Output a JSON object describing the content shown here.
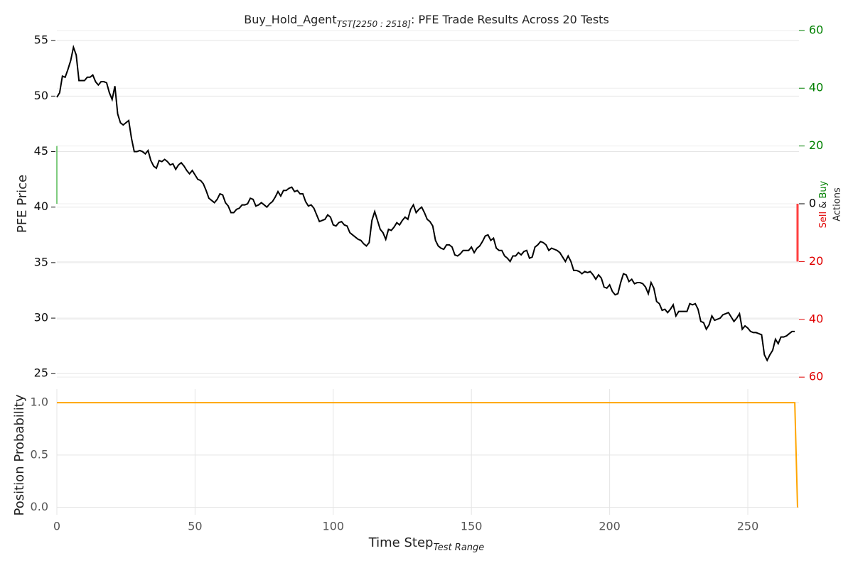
{
  "chart_data": [
    {
      "type": "line",
      "title": {
        "main": "Buy_Hold_Agent",
        "sub": "TST[2250 : 2518]",
        "rest": ": PFE Trade Results Across 20 Tests"
      },
      "ylabel": "PFE Price",
      "y2label": {
        "sell": "Sell",
        "and": "&",
        "buy": "Buy",
        "title": "Actions"
      },
      "xlim": [
        0,
        268.5
      ],
      "ylim": [
        23.8,
        56.1
      ],
      "yticks": [
        25,
        30,
        35,
        40,
        45,
        50,
        55
      ],
      "y2lim": [
        -63.4,
        60.7
      ],
      "y2ticks": [
        {
          "value": -60,
          "label": "60"
        },
        {
          "value": -40,
          "label": "40"
        },
        {
          "value": -20,
          "label": "20"
        },
        0,
        20,
        40,
        60
      ],
      "y2tick_colors": {
        "positive": "#008000",
        "negative": "#e00000",
        "zero": "#000000"
      },
      "grid": true,
      "series": [
        {
          "color": "#000000",
          "x": [
            0,
            1,
            2,
            3,
            4,
            5,
            6,
            7,
            8,
            9,
            10,
            11,
            12,
            13,
            14,
            15,
            16,
            17,
            18,
            19,
            20,
            21,
            22,
            23,
            24,
            25,
            26,
            27,
            28,
            29,
            30,
            31,
            32,
            33,
            34,
            35,
            36,
            37,
            38,
            39,
            40,
            41,
            42,
            43,
            44,
            45,
            46,
            47,
            48,
            49,
            50,
            51,
            52,
            53,
            54,
            55,
            56,
            57,
            58,
            59,
            60,
            61,
            62,
            63,
            64,
            65,
            66,
            67,
            68,
            69,
            70,
            71,
            72,
            73,
            74,
            75,
            76,
            77,
            78,
            79,
            80,
            81,
            82,
            83,
            84,
            85,
            86,
            87,
            88,
            89,
            90,
            91,
            92,
            93,
            94,
            95,
            96,
            97,
            98,
            99,
            100,
            101,
            102,
            103,
            104,
            105,
            106,
            107,
            108,
            109,
            110,
            111,
            112,
            113,
            114,
            115,
            116,
            117,
            118,
            119,
            120,
            121,
            122,
            123,
            124,
            125,
            126,
            127,
            128,
            129,
            130,
            131,
            132,
            133,
            134,
            135,
            136,
            137,
            138,
            139,
            140,
            141,
            142,
            143,
            144,
            145,
            146,
            147,
            148,
            149,
            150,
            151,
            152,
            153,
            154,
            155,
            156,
            157,
            158,
            159,
            160,
            161,
            162,
            163,
            164,
            165,
            166,
            167,
            168,
            169,
            170,
            171,
            172,
            173,
            174,
            175,
            176,
            177,
            178,
            179,
            180,
            181,
            182,
            183,
            184,
            185,
            186,
            187,
            188,
            189,
            190,
            191,
            192,
            193,
            194,
            195,
            196,
            197,
            198,
            199,
            200,
            201,
            202,
            203,
            204,
            205,
            206,
            207,
            208,
            209,
            210,
            211,
            212,
            213,
            214,
            215,
            216,
            217,
            218,
            219,
            220,
            221,
            222,
            223,
            224,
            225,
            226,
            227,
            228,
            229,
            230,
            231,
            232,
            233,
            234,
            235,
            236,
            237,
            238,
            239,
            240,
            241,
            242,
            243,
            244,
            245,
            246,
            247,
            248,
            249,
            250,
            251,
            252,
            253,
            254,
            255,
            256,
            257,
            258,
            259,
            260,
            261,
            262,
            263,
            264,
            265,
            266,
            267
          ],
          "values": [
            49.9,
            50.3,
            51.8,
            51.7,
            52.4,
            53.2,
            54.4,
            53.7,
            51.4,
            51.4,
            51.4,
            51.7,
            51.7,
            51.9,
            51.3,
            51.0,
            51.3,
            51.3,
            51.2,
            50.3,
            49.7,
            50.9,
            48.4,
            47.6,
            47.4,
            47.6,
            47.8,
            46.2,
            45.0,
            45.0,
            45.1,
            45.0,
            44.8,
            45.1,
            44.2,
            43.7,
            43.5,
            44.2,
            44.1,
            44.3,
            44.1,
            43.8,
            43.9,
            43.4,
            43.8,
            44.0,
            43.7,
            43.3,
            43.0,
            43.3,
            42.9,
            42.5,
            42.4,
            42.1,
            41.5,
            40.8,
            40.6,
            40.4,
            40.7,
            41.2,
            41.1,
            40.4,
            40.1,
            39.5,
            39.5,
            39.8,
            39.9,
            40.2,
            40.2,
            40.3,
            40.8,
            40.7,
            40.1,
            40.2,
            40.4,
            40.2,
            40.0,
            40.3,
            40.5,
            40.9,
            41.4,
            41.0,
            41.5,
            41.5,
            41.7,
            41.8,
            41.4,
            41.5,
            41.2,
            41.2,
            40.5,
            40.1,
            40.2,
            39.9,
            39.3,
            38.7,
            38.8,
            38.9,
            39.3,
            39.1,
            38.4,
            38.3,
            38.6,
            38.7,
            38.4,
            38.3,
            37.7,
            37.5,
            37.3,
            37.1,
            37.0,
            36.7,
            36.5,
            36.8,
            38.8,
            39.6,
            38.8,
            38.0,
            37.7,
            37.1,
            38.0,
            37.9,
            38.2,
            38.6,
            38.4,
            38.8,
            39.1,
            38.9,
            39.8,
            40.2,
            39.5,
            39.8,
            40.0,
            39.5,
            38.9,
            38.7,
            38.3,
            37.0,
            36.5,
            36.3,
            36.2,
            36.6,
            36.6,
            36.4,
            35.7,
            35.6,
            35.8,
            36.1,
            36.1,
            36.1,
            36.4,
            35.9,
            36.3,
            36.5,
            36.9,
            37.4,
            37.5,
            37.0,
            37.2,
            36.3,
            36.1,
            36.1,
            35.6,
            35.4,
            35.1,
            35.6,
            35.6,
            35.9,
            35.7,
            36.0,
            36.1,
            35.4,
            35.5,
            36.4,
            36.6,
            36.9,
            36.8,
            36.6,
            36.1,
            36.3,
            36.2,
            36.1,
            35.9,
            35.5,
            35.1,
            35.6,
            35.1,
            34.3,
            34.3,
            34.2,
            34.0,
            34.2,
            34.1,
            34.2,
            33.9,
            33.5,
            33.9,
            33.6,
            32.8,
            32.7,
            33.0,
            32.4,
            32.1,
            32.2,
            33.2,
            34.0,
            33.9,
            33.3,
            33.5,
            33.1,
            33.2,
            33.2,
            33.1,
            32.8,
            32.2,
            33.2,
            32.7,
            31.5,
            31.3,
            30.7,
            30.8,
            30.5,
            30.8,
            31.2,
            30.2,
            30.6,
            30.6,
            30.6,
            30.6,
            31.3,
            31.2,
            31.3,
            30.8,
            29.7,
            29.6,
            29.0,
            29.4,
            30.2,
            29.8,
            29.9,
            30.0,
            30.3,
            30.4,
            30.5,
            30.1,
            29.7,
            30.0,
            30.4,
            29.0,
            29.3,
            29.1,
            28.8,
            28.7,
            28.7,
            28.6,
            28.5,
            26.7,
            26.2,
            26.7,
            27.1,
            28.1,
            27.7,
            28.3,
            28.3,
            28.4,
            28.6,
            28.8,
            28.8
          ]
        }
      ],
      "actions": [
        {
          "color": "#55bb55",
          "x": [
            0
          ],
          "values": [
            20
          ]
        },
        {
          "color": "#ff4040",
          "x": [
            268
          ],
          "values": [
            -20
          ]
        }
      ]
    },
    {
      "type": "line",
      "ylabel": "Position Probability",
      "xlabel": {
        "main": "Time Step",
        "sub": "Test Range"
      },
      "xlim": [
        0,
        268.5
      ],
      "xticks": [
        0,
        50,
        100,
        150,
        200,
        250
      ],
      "ylim": [
        -0.07,
        1.13
      ],
      "yticks": [
        {
          "value": 0,
          "label": "0.0"
        },
        0.5,
        {
          "value": 1,
          "label": "1.0"
        }
      ],
      "grid": true,
      "series": [
        {
          "color": "#ffa500",
          "x": [
            0,
            267,
            268
          ],
          "values": [
            1,
            1,
            0
          ]
        }
      ]
    }
  ]
}
